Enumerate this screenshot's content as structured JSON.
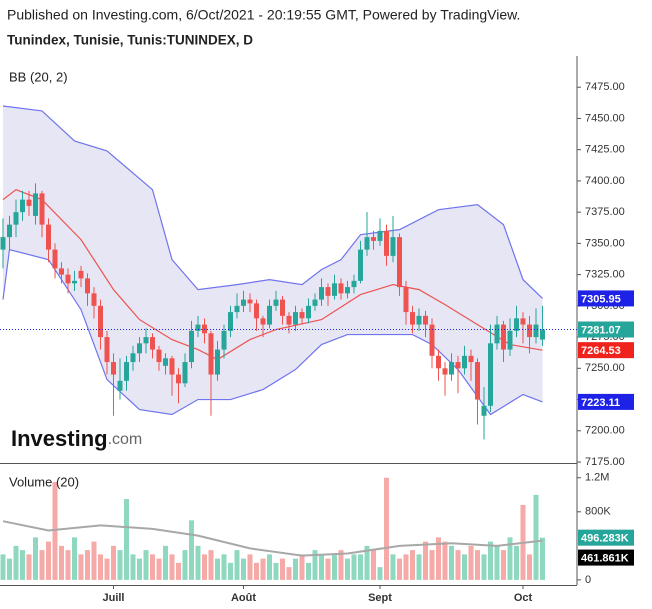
{
  "header": {
    "published": "Published on Investing.com, 6/Oct/2021 - 20:19:55 GMT, Powered by TradingView.",
    "symbol": "Tunindex, Tunisie, Tunis:TUNINDEX, D"
  },
  "logo": {
    "brand": "Investing",
    "suffix": ".com"
  },
  "chart_data": [
    {
      "type": "candlestick",
      "indicator": "BB (20, 2)",
      "up_color": "#26a69a",
      "down_color": "#ef5350",
      "ylim": [
        7175,
        7500
      ],
      "yticks": [
        {
          "value": 7175,
          "label": "7175.00"
        },
        {
          "value": 7200,
          "label": "7200.00"
        },
        {
          "value": 7225,
          "label": "7225.00"
        },
        {
          "value": 7250,
          "label": "7250.00"
        },
        {
          "value": 7275,
          "label": "7275.00"
        },
        {
          "value": 7300,
          "label": "7300.00"
        },
        {
          "value": 7325,
          "label": "7325.00"
        },
        {
          "value": 7350,
          "label": "7350.00"
        },
        {
          "value": 7375,
          "label": "7375.00"
        },
        {
          "value": 7400,
          "label": "7400.00"
        },
        {
          "value": 7425,
          "label": "7425.00"
        },
        {
          "value": 7450,
          "label": "7450.00"
        },
        {
          "value": 7475,
          "label": "7475.00"
        }
      ],
      "xticks": [
        {
          "value": 17,
          "label": "Juill"
        },
        {
          "value": 37,
          "label": "Août"
        },
        {
          "value": 58,
          "label": "Sept"
        },
        {
          "value": 80,
          "label": "Oct"
        }
      ],
      "ohlc": [
        [
          7345,
          7370,
          7330,
          7355
        ],
        [
          7355,
          7372,
          7345,
          7365
        ],
        [
          7365,
          7385,
          7355,
          7375
        ],
        [
          7375,
          7392,
          7368,
          7385
        ],
        [
          7385,
          7392,
          7372,
          7380
        ],
        [
          7372,
          7398,
          7365,
          7390
        ],
        [
          7390,
          7392,
          7355,
          7365
        ],
        [
          7365,
          7370,
          7335,
          7345
        ],
        [
          7345,
          7350,
          7322,
          7330
        ],
        [
          7330,
          7335,
          7318,
          7325
        ],
        [
          7325,
          7330,
          7310,
          7318
        ],
        [
          7318,
          7328,
          7312,
          7320
        ],
        [
          7328,
          7332,
          7315,
          7322
        ],
        [
          7322,
          7326,
          7300,
          7310
        ],
        [
          7310,
          7315,
          7290,
          7300
        ],
        [
          7300,
          7305,
          7265,
          7275
        ],
        [
          7275,
          7280,
          7245,
          7255
        ],
        [
          7255,
          7262,
          7212,
          7245
        ],
        [
          7232,
          7258,
          7225,
          7240
        ],
        [
          7240,
          7260,
          7232,
          7255
        ],
        [
          7255,
          7268,
          7248,
          7262
        ],
        [
          7262,
          7275,
          7255,
          7270
        ],
        [
          7270,
          7282,
          7262,
          7275
        ],
        [
          7275,
          7278,
          7258,
          7265
        ],
        [
          7265,
          7268,
          7248,
          7255
        ],
        [
          7252,
          7262,
          7245,
          7258
        ],
        [
          7258,
          7260,
          7228,
          7245
        ],
        [
          7245,
          7250,
          7222,
          7238
        ],
        [
          7238,
          7262,
          7235,
          7255
        ],
        [
          7255,
          7288,
          7250,
          7280
        ],
        [
          7280,
          7292,
          7275,
          7285
        ],
        [
          7285,
          7290,
          7270,
          7278
        ],
        [
          7278,
          7280,
          7212,
          7245
        ],
        [
          7245,
          7272,
          7240,
          7265
        ],
        [
          7265,
          7285,
          7258,
          7280
        ],
        [
          7280,
          7300,
          7275,
          7295
        ],
        [
          7295,
          7310,
          7290,
          7300
        ],
        [
          7300,
          7312,
          7295,
          7305
        ],
        [
          7305,
          7310,
          7295,
          7302
        ],
        [
          7302,
          7305,
          7280,
          7290
        ],
        [
          7290,
          7292,
          7275,
          7285
        ],
        [
          7285,
          7305,
          7282,
          7300
        ],
        [
          7300,
          7312,
          7296,
          7305
        ],
        [
          7305,
          7308,
          7285,
          7292
        ],
        [
          7292,
          7295,
          7278,
          7285
        ],
        [
          7285,
          7300,
          7280,
          7295
        ],
        [
          7295,
          7298,
          7285,
          7290
        ],
        [
          7290,
          7306,
          7286,
          7300
        ],
        [
          7300,
          7310,
          7296,
          7305
        ],
        [
          7305,
          7322,
          7300,
          7315
        ],
        [
          7315,
          7318,
          7300,
          7308
        ],
        [
          7308,
          7325,
          7305,
          7318
        ],
        [
          7318,
          7322,
          7305,
          7310
        ],
        [
          7310,
          7320,
          7306,
          7315
        ],
        [
          7315,
          7325,
          7310,
          7320
        ],
        [
          7320,
          7352,
          7318,
          7345
        ],
        [
          7345,
          7375,
          7340,
          7355
        ],
        [
          7355,
          7360,
          7345,
          7352
        ],
        [
          7352,
          7370,
          7348,
          7360
        ],
        [
          7360,
          7365,
          7332,
          7340
        ],
        [
          7340,
          7372,
          7335,
          7355
        ],
        [
          7355,
          7358,
          7308,
          7315
        ],
        [
          7315,
          7320,
          7285,
          7295
        ],
        [
          7295,
          7300,
          7278,
          7285
        ],
        [
          7285,
          7298,
          7280,
          7292
        ],
        [
          7292,
          7296,
          7275,
          7285
        ],
        [
          7285,
          7290,
          7250,
          7260
        ],
        [
          7260,
          7265,
          7240,
          7250
        ],
        [
          7250,
          7255,
          7228,
          7245
        ],
        [
          7245,
          7262,
          7240,
          7255
        ],
        [
          7255,
          7260,
          7230,
          7250
        ],
        [
          7250,
          7268,
          7245,
          7260
        ],
        [
          7260,
          7265,
          7240,
          7255
        ],
        [
          7255,
          7258,
          7205,
          7225
        ],
        [
          7212,
          7235,
          7193,
          7220
        ],
        [
          7220,
          7285,
          7215,
          7270
        ],
        [
          7270,
          7292,
          7265,
          7285
        ],
        [
          7285,
          7288,
          7255,
          7265
        ],
        [
          7265,
          7290,
          7260,
          7280
        ],
        [
          7280,
          7300,
          7275,
          7290
        ],
        [
          7290,
          7295,
          7270,
          7285
        ],
        [
          7285,
          7292,
          7262,
          7275
        ],
        [
          7275,
          7298,
          7270,
          7285
        ],
        [
          7273,
          7300,
          7268,
          7281.07
        ]
      ],
      "band_fill": "#e6e6f4",
      "bands": [
        {
          "color": "#7074ee",
          "label_color": "#1e22e6",
          "x": [
            0,
            6,
            11,
            16,
            23,
            26,
            30,
            36,
            41,
            46,
            49,
            52,
            55,
            61,
            67,
            73,
            77,
            80,
            83
          ],
          "values": [
            7460,
            7456,
            7432,
            7424,
            7393,
            7337,
            7313,
            7317,
            7321,
            7317,
            7329,
            7337,
            7357,
            7361,
            7377,
            7381,
            7365,
            7321,
            7305.95
          ]
        },
        {
          "color": "#ef5350",
          "label_color": "#f0221c",
          "x": [
            0,
            2,
            6,
            12,
            17,
            21,
            26,
            30,
            33,
            38,
            42,
            49,
            55,
            60,
            64,
            68,
            73,
            78,
            83
          ],
          "values": [
            7385,
            7393,
            7385,
            7353,
            7313,
            7289,
            7273,
            7265,
            7257,
            7273,
            7281,
            7289,
            7309,
            7317,
            7313,
            7301,
            7285,
            7269,
            7264.53
          ]
        },
        {
          "color": "#7074ee",
          "label_color": "#1e22e6",
          "x": [
            0,
            1,
            7,
            12,
            16,
            21,
            26,
            30,
            35,
            40,
            45,
            49,
            53,
            58,
            63,
            66,
            70,
            75,
            80,
            83
          ],
          "values": [
            7305,
            7345,
            7337,
            7297,
            7241,
            7217,
            7213,
            7225,
            7225,
            7233,
            7249,
            7269,
            7277,
            7277,
            7277,
            7269,
            7249,
            7213,
            7229,
            7223.11
          ]
        }
      ]
    },
    {
      "type": "volume",
      "title": "Volume (20)",
      "up_color": "#8fd8c0",
      "down_color": "#f6aaa8",
      "ylim": [
        -60000,
        1350000
      ],
      "yticks": [
        0,
        {
          "value": 800000,
          "label": "800K"
        },
        {
          "value": 1200000,
          "label": "1.2M"
        }
      ],
      "values": [
        300000,
        250000,
        400000,
        350000,
        300000,
        500000,
        350000,
        450000,
        1150000,
        400000,
        350000,
        500000,
        300000,
        350000,
        450000,
        300000,
        250000,
        400000,
        350000,
        950000,
        300000,
        250000,
        350000,
        300000,
        250000,
        400000,
        300000,
        200000,
        350000,
        700000,
        400000,
        300000,
        350000,
        250000,
        300000,
        200000,
        350000,
        250000,
        300000,
        200000,
        250000,
        300000,
        200000,
        250000,
        150000,
        250000,
        300000,
        200000,
        350000,
        300000,
        250000,
        300000,
        350000,
        250000,
        300000,
        300000,
        400000,
        350000,
        150000,
        1200000,
        300000,
        250000,
        300000,
        350000,
        300000,
        450000,
        350000,
        500000,
        450000,
        400000,
        350000,
        300000,
        400000,
        350000,
        300000,
        450000,
        400000,
        350000,
        500000,
        400000,
        880000,
        300000,
        1000000,
        496283
      ],
      "last_label": "496.283K",
      "last_color": "#26a69a",
      "ma": {
        "color": "#a8a8a8",
        "label_color": "#000000",
        "x": [
          0,
          7,
          15,
          23,
          30,
          38,
          46,
          53,
          61,
          69,
          76,
          83
        ],
        "values": [
          690000,
          580000,
          640000,
          600000,
          520000,
          370000,
          285000,
          310000,
          400000,
          430000,
          400000,
          461861
        ],
        "last_label": "461.861K"
      }
    }
  ]
}
